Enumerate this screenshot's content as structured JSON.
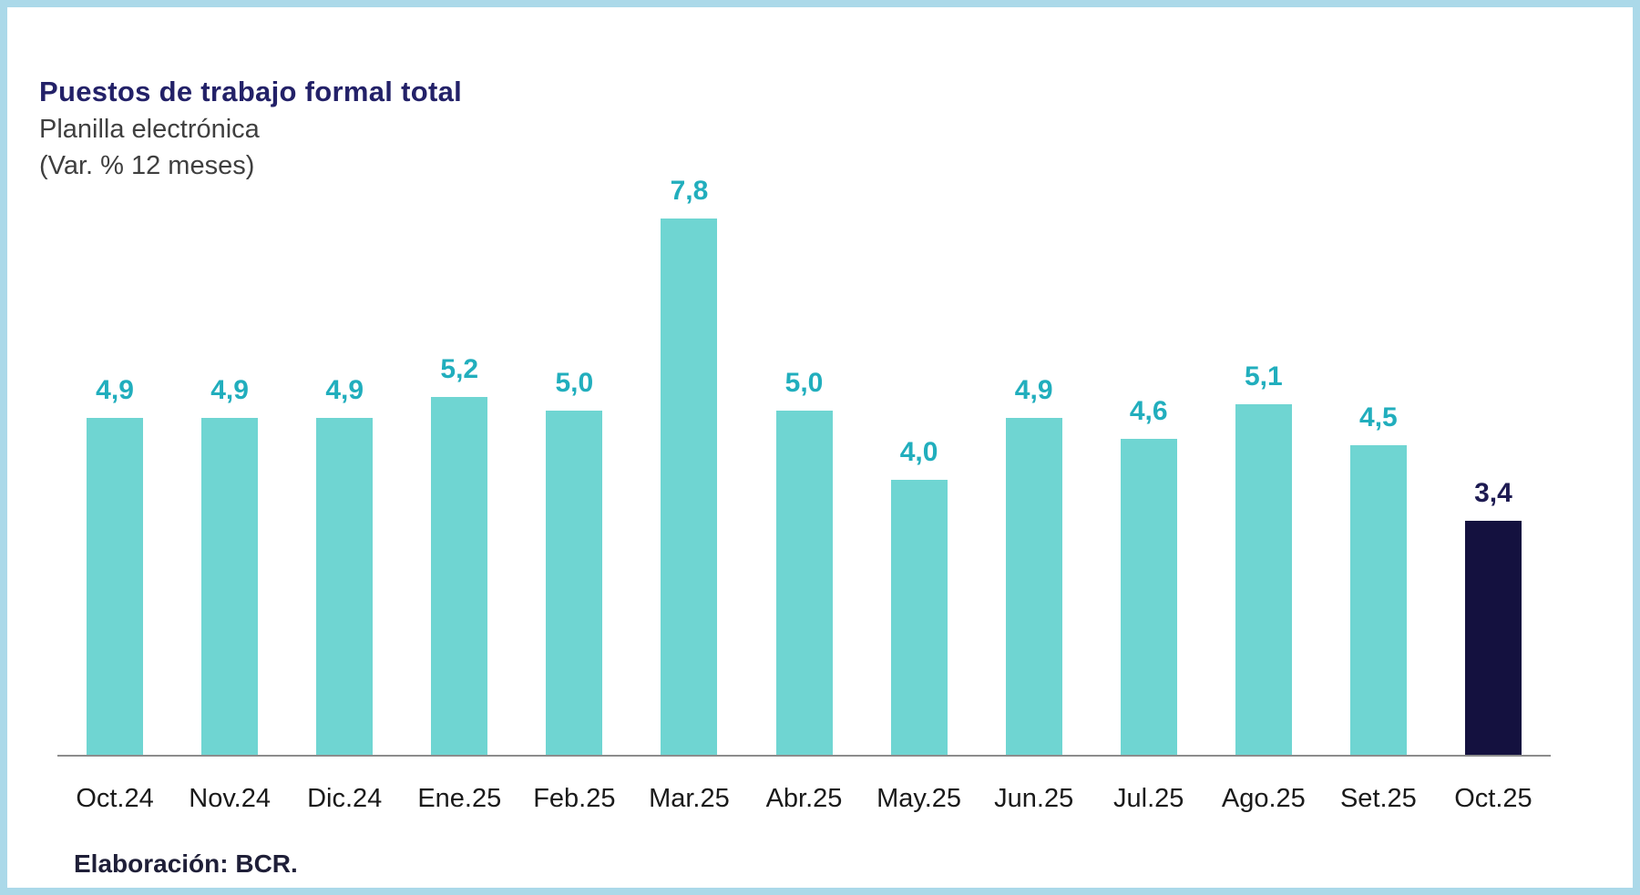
{
  "frame": {
    "border_color": "#ABD9E9",
    "background": "#FFFFFF"
  },
  "header": {
    "title": "Puestos de trabajo formal total",
    "subtitle": "Planilla electrónica",
    "unit_note": "(Var. % 12 meses)",
    "title_color": "#232168",
    "subtitle_color": "#3F3F3F"
  },
  "chart_data": {
    "type": "bar",
    "title": "Puestos de trabajo formal total",
    "subtitle": "Planilla electrónica (Var. % 12 meses)",
    "categories": [
      "Oct.24",
      "Nov.24",
      "Dic.24",
      "Ene.25",
      "Feb.25",
      "Mar.25",
      "Abr.25",
      "May.25",
      "Jun.25",
      "Jul.25",
      "Ago.25",
      "Set.25",
      "Oct.25"
    ],
    "values": [
      4.9,
      4.9,
      4.9,
      5.2,
      5.0,
      7.8,
      5.0,
      4.0,
      4.9,
      4.6,
      5.1,
      4.5,
      3.4
    ],
    "value_labels": [
      "4,9",
      "4,9",
      "4,9",
      "5,2",
      "5,0",
      "7,8",
      "5,0",
      "4,0",
      "4,9",
      "4,6",
      "5,1",
      "4,5",
      "3,4"
    ],
    "xlabel": "",
    "ylabel": "",
    "ylim": [
      0,
      8.2
    ],
    "grid": false,
    "legend_position": "none",
    "bar_color": "#6FD5D2",
    "highlight_index": 12,
    "highlight_bar_color": "#14113F",
    "value_label_color": "#21AEBD",
    "highlight_value_label_color": "#1E1B52",
    "axis_line_color": "#8C8C8C",
    "tick_label_color": "#1A1A1A"
  },
  "footer": {
    "text": "Elaboración: BCR."
  }
}
